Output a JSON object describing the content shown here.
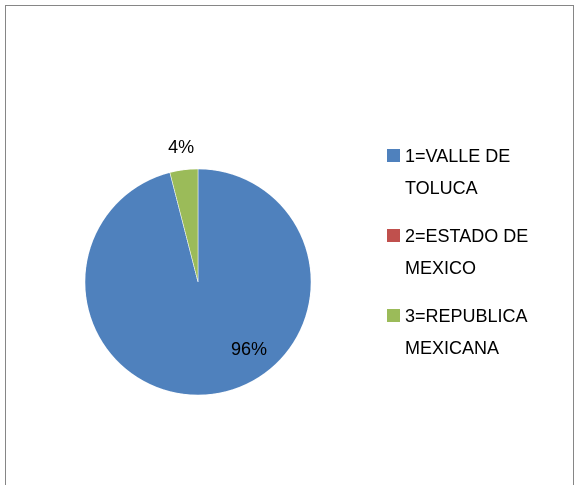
{
  "chart_data": {
    "type": "pie",
    "categories": [
      "1=VALLE DE TOLUCA",
      "2=ESTADO DE MEXICO",
      "3=REPUBLICA MEXICANA"
    ],
    "values": [
      96,
      0,
      4
    ],
    "value_labels": [
      "96%",
      null,
      "4%"
    ],
    "colors": [
      "#4f81bd",
      "#c0504d",
      "#9bbb59"
    ],
    "legend": "right"
  }
}
